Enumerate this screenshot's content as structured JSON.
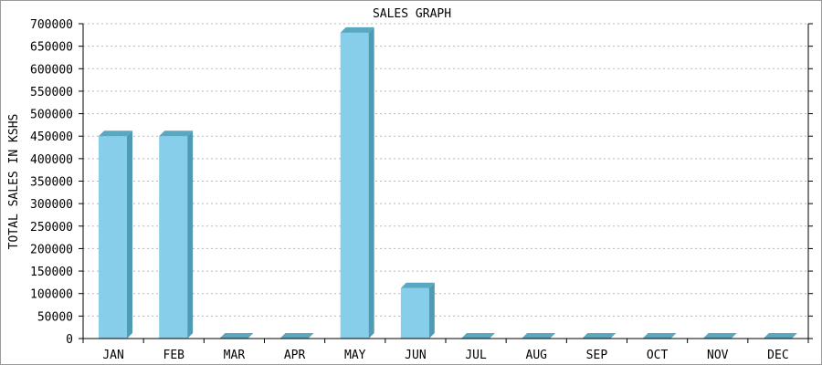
{
  "chart_data": {
    "type": "bar",
    "title": "SALES GRAPH",
    "xlabel": "",
    "ylabel": "TOTAL SALES IN KSHS",
    "categories": [
      "JAN",
      "FEB",
      "MAR",
      "APR",
      "MAY",
      "JUN",
      "JUL",
      "AUG",
      "SEP",
      "OCT",
      "NOV",
      "DEC"
    ],
    "values": [
      450000,
      450000,
      0,
      0,
      680000,
      112000,
      0,
      0,
      0,
      0,
      0,
      0
    ],
    "ylim": [
      0,
      700000
    ],
    "yticks": [
      0,
      50000,
      100000,
      150000,
      200000,
      250000,
      300000,
      350000,
      400000,
      450000,
      500000,
      550000,
      600000,
      650000,
      700000
    ],
    "grid": true,
    "bar_style": "3d",
    "colors": {
      "bar_front": "#87ceeb",
      "bar_side": "#4f9bb4",
      "bar_top": "#5aa7c0",
      "grid": "#b8b8b8",
      "axis": "#000000"
    }
  }
}
